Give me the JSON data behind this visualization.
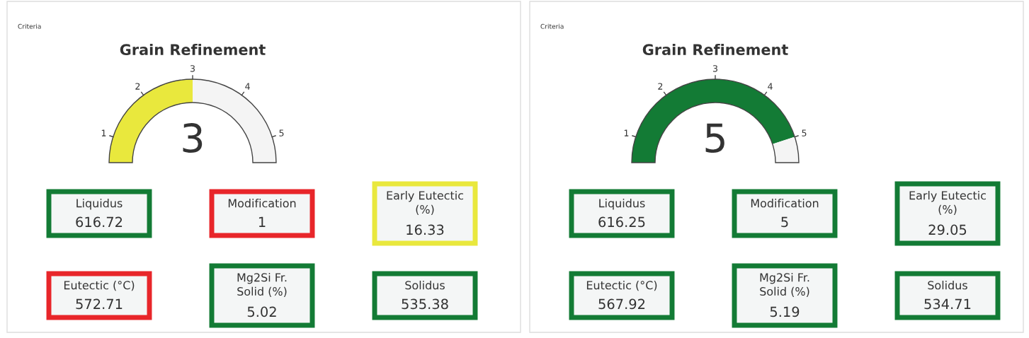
{
  "chart_data": [
    {
      "type": "donut",
      "title": "Grain Refinement",
      "annotations": [
        "Criteria",
        "1",
        "2",
        "3",
        "4",
        "5",
        "3"
      ],
      "categories": [
        null,
        null
      ],
      "values": [
        50,
        50
      ],
      "colors": [
        "#e9e83d",
        "#f4f4f4"
      ]
    },
    {
      "type": "other",
      "categories": [
        "Liquidus",
        "Modification",
        "Early Eutectic\n(%)",
        "Eutectic (°C)",
        "Mg2Si Fr.\nSolid (%)",
        "Solidus"
      ],
      "values": [
        616.72,
        1,
        16.33,
        572.71,
        5.02,
        535.38
      ],
      "colors": [
        "#137b35",
        "#e8262a",
        "#e9e83d",
        "#e8262a",
        "#137b35",
        "#137b35"
      ],
      "data_labels": true
    },
    {
      "type": "donut",
      "title": "Grain Refinement",
      "annotations": [
        "Criteria",
        "1",
        "2",
        "3",
        "4",
        "5",
        "5"
      ],
      "categories": [
        null,
        null
      ],
      "values": [
        90,
        10
      ],
      "colors": [
        "#137b35",
        "#f4f4f4"
      ]
    },
    {
      "type": "other",
      "categories": [
        "Liquidus",
        "Modification",
        "Early Eutectic\n(%)",
        "Eutectic (°C)",
        "Mg2Si Fr.\nSolid (%)",
        "Solidus"
      ],
      "values": [
        616.25,
        5,
        29.05,
        567.92,
        5.19,
        534.71
      ],
      "colors": [
        "#137b35",
        "#137b35",
        "#137b35",
        "#137b35",
        "#137b35",
        "#137b35"
      ],
      "data_labels": true
    }
  ]
}
